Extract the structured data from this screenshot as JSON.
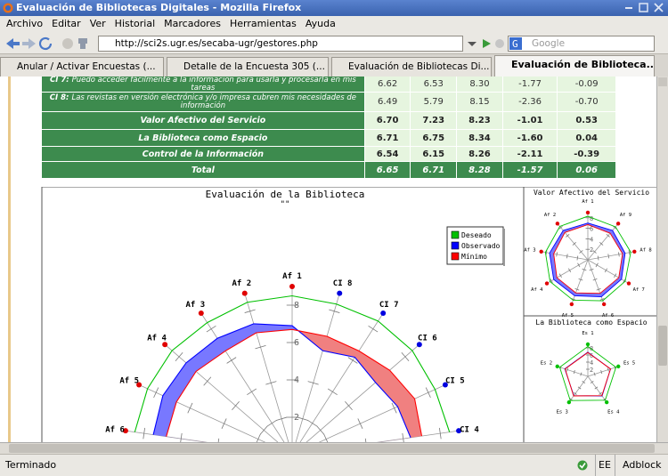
{
  "window": {
    "title": "Evaluación de Bibliotecas Digitales - Mozilla Firefox"
  },
  "menu": [
    "Archivo",
    "Editar",
    "Ver",
    "Historial",
    "Marcadores",
    "Herramientas",
    "Ayuda"
  ],
  "navbar": {
    "url": "http://sci2s.ugr.es/secaba-ugr/gestores.php",
    "search": "Google"
  },
  "tabs": [
    "Anular / Activar Encuestas (...",
    "Detalle de la Encuesta 305 (...",
    "Evaluación de Bibliotecas Di...",
    "Evaluación de Biblioteca..."
  ],
  "table": {
    "rows": [
      {
        "code": "CI 7:",
        "label": "Puedo acceder fácilmente a la informacion para usarla y procesarla en mis tareas",
        "cells": [
          "6.62",
          "6.53",
          "8.30",
          "-1.77",
          "-0.09"
        ]
      },
      {
        "code": "CI 8:",
        "label": "Las revistas en versión electrónica y/o impresa cubren mis necesidades de información",
        "cells": [
          "6.49",
          "5.79",
          "8.15",
          "-2.36",
          "-0.70"
        ]
      },
      {
        "label": "Valor Afectivo del Servicio",
        "cells": [
          "6.70",
          "7.23",
          "8.23",
          "-1.01",
          "0.53"
        ]
      },
      {
        "label": "La Biblioteca como Espacio",
        "cells": [
          "6.71",
          "6.75",
          "8.34",
          "-1.60",
          "0.04"
        ]
      },
      {
        "label": "Control de la Información",
        "cells": [
          "6.54",
          "6.15",
          "8.26",
          "-2.11",
          "-0.39"
        ]
      },
      {
        "label": "Total",
        "cells": [
          "6.65",
          "6.71",
          "8.28",
          "-1.57",
          "0.06"
        ]
      }
    ]
  },
  "chart_data": [
    {
      "type": "radar",
      "title": "Evaluación de la Biblioteca",
      "subtitle": "\"\"",
      "categories": [
        "Af 6",
        "Af 5",
        "Af 4",
        "Af 3",
        "Af 2",
        "Af 1",
        "CI 8",
        "CI 7",
        "CI 6",
        "CI 5",
        "CI 4"
      ],
      "axis_colors": [
        "#e00000",
        "#e00000",
        "#e00000",
        "#e00000",
        "#e00000",
        "#e00000",
        "#0000e0",
        "#0000e0",
        "#0000e0",
        "#0000e0",
        "#0000e0"
      ],
      "series": [
        {
          "name": "Deseado",
          "color": "#00c000",
          "values": [
            8.5,
            8.5,
            8.5,
            8.4,
            8.5,
            8.5,
            8.4,
            8.5,
            8.5,
            8.4,
            8.5
          ]
        },
        {
          "name": "Observado",
          "color": "#0000ff",
          "values": [
            7.5,
            7.6,
            7.5,
            7.4,
            7.3,
            6.9,
            5.8,
            6.2,
            5.9,
            6.2,
            6.4
          ]
        },
        {
          "name": "Mínimo",
          "color": "#ff0000",
          "values": [
            6.8,
            6.8,
            6.8,
            6.6,
            6.8,
            6.7,
            6.6,
            6.6,
            6.9,
            7.2,
            7.0
          ]
        }
      ],
      "rlim": [
        0,
        9
      ],
      "rticks": [
        2,
        4,
        6,
        8
      ],
      "legend": "upper right"
    },
    {
      "type": "radar",
      "title": "Valor Afectivo del Servicio",
      "categories": [
        "Af 1",
        "Af 9",
        "Af 8",
        "Af 7",
        "Af 6",
        "Af 5",
        "Af 4",
        "Af 3",
        "Af 2"
      ],
      "axis_colors": [
        "#e00000",
        "#e00000",
        "#e00000",
        "#e00000",
        "#e00000",
        "#e00000",
        "#e00000",
        "#e00000",
        "#e00000"
      ],
      "series": [
        {
          "name": "Deseado",
          "color": "#00c000",
          "values": [
            8.3,
            8.2,
            8.3,
            8.2,
            8.3,
            8.2,
            8.3,
            8.2,
            8.3
          ]
        },
        {
          "name": "Observado",
          "color": "#0000ff",
          "values": [
            7.0,
            7.3,
            7.2,
            7.4,
            7.5,
            7.3,
            7.5,
            7.4,
            7.3
          ]
        },
        {
          "name": "Mínimo",
          "color": "#ff0000",
          "values": [
            6.7,
            6.6,
            6.7,
            6.8,
            6.8,
            6.7,
            6.8,
            6.6,
            6.8
          ]
        }
      ],
      "rlim": [
        0,
        9
      ],
      "rticks": [
        2,
        4,
        6,
        8
      ]
    },
    {
      "type": "radar",
      "title": "La Biblioteca como Espacio",
      "categories": [
        "Es 1",
        "Es 5",
        "Es 4",
        "Es 3",
        "Es 2"
      ],
      "axis_colors": [
        "#00c000",
        "#00c000",
        "#00c000",
        "#00c000",
        "#00c000"
      ],
      "series": [
        {
          "name": "Deseado",
          "color": "#00c000",
          "values": [
            8.4,
            8.3,
            8.3,
            8.4,
            8.3
          ]
        },
        {
          "name": "Observado",
          "color": "#0000ff",
          "values": [
            6.8,
            6.7,
            6.8,
            6.7,
            6.8
          ]
        },
        {
          "name": "Mínimo",
          "color": "#ff0000",
          "values": [
            6.7,
            6.7,
            6.7,
            6.8,
            6.7
          ]
        }
      ],
      "rlim": [
        0,
        9
      ],
      "rticks": [
        2,
        4,
        6,
        8
      ]
    }
  ],
  "status": {
    "text": "Terminado",
    "zoom": "EE",
    "addon": "Adblock"
  }
}
